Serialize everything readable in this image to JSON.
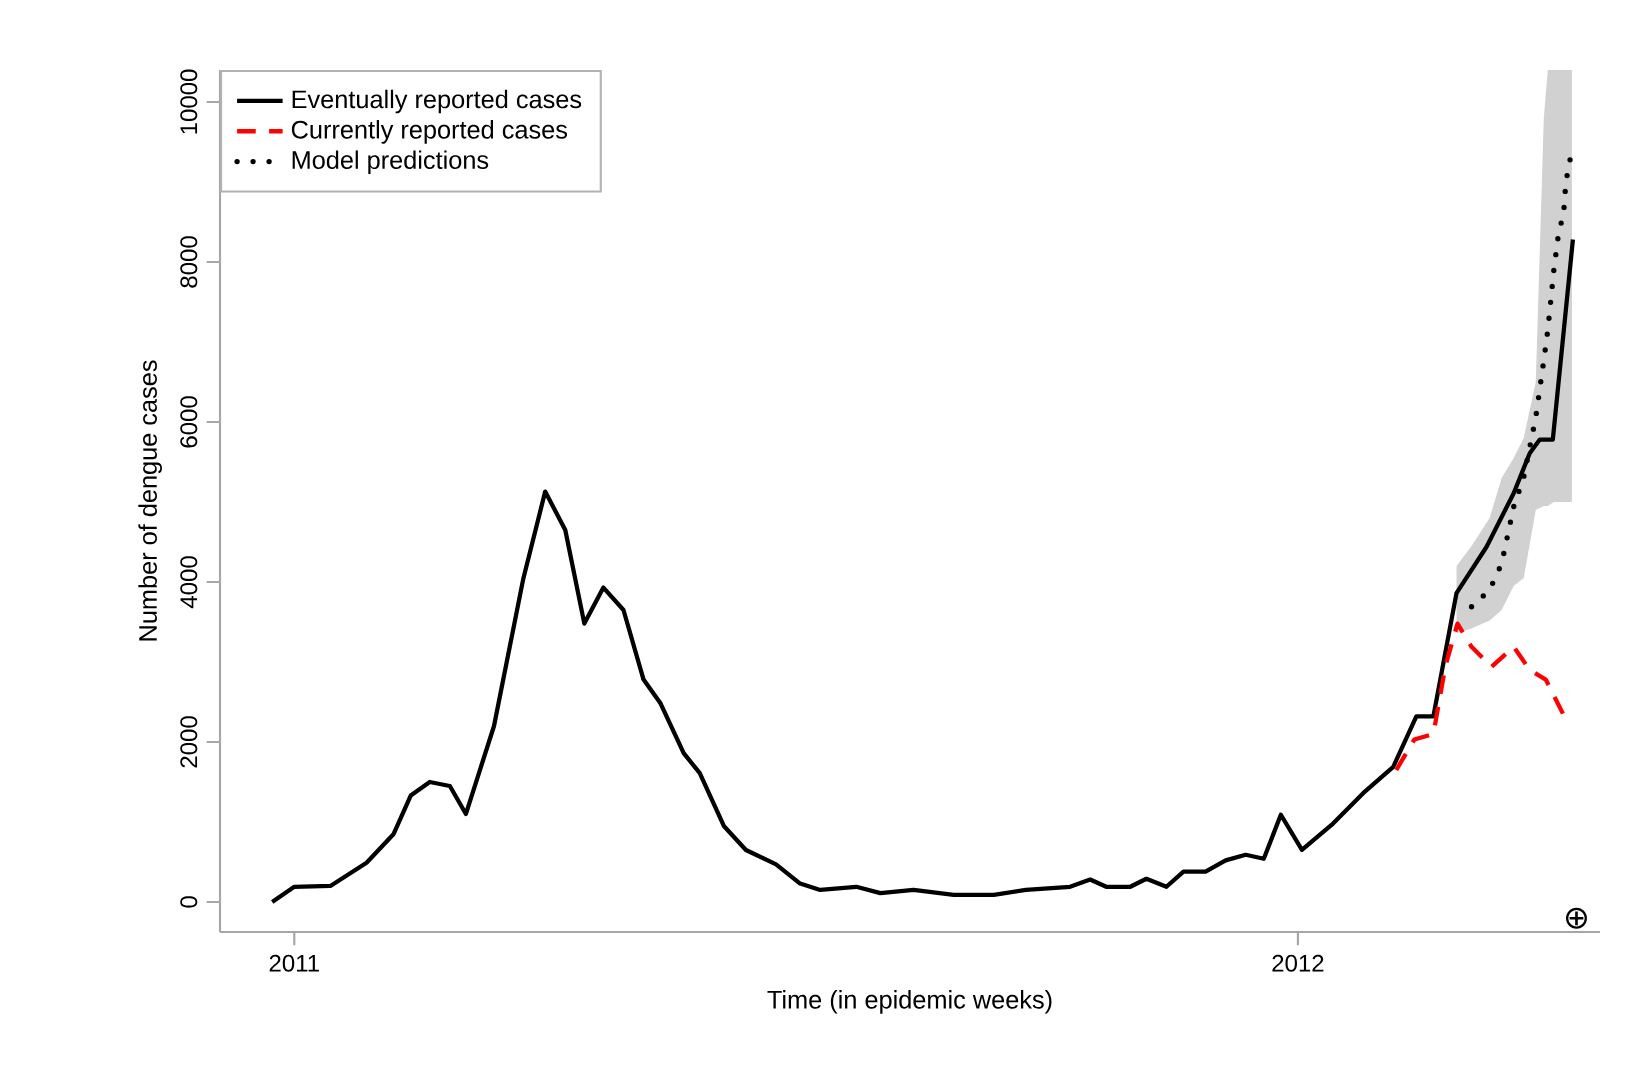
{
  "chart_data": {
    "type": "line",
    "xlabel": "Time (in epidemic weeks)",
    "ylabel": "Number of dengue cases",
    "xlim": [
      2010.926,
      2012.301
    ],
    "ylim": [
      -375,
      10400
    ],
    "xticks": [
      2011,
      2012
    ],
    "yticks": [
      0,
      2000,
      4000,
      6000,
      8000,
      10000
    ],
    "grid": false,
    "legend": "top left",
    "annotations": [
      "⊕"
    ],
    "series": [
      {
        "name": "Eventually reported cases",
        "color": "#000000",
        "line_style": "solid",
        "x": [
          2010.978,
          2011.0,
          2011.036,
          2011.072,
          2011.099,
          2011.116,
          2011.135,
          2011.155,
          2011.171,
          2011.199,
          2011.228,
          2011.25,
          2011.27,
          2011.289,
          2011.308,
          2011.328,
          2011.348,
          2011.365,
          2011.388,
          2011.404,
          2011.428,
          2011.45,
          2011.48,
          2011.504,
          2011.524,
          2011.56,
          2011.584,
          2011.617,
          2011.657,
          2011.697,
          2011.729,
          2011.773,
          2011.793,
          2011.809,
          2011.833,
          2011.849,
          2011.869,
          2011.886,
          2011.908,
          2011.928,
          2011.948,
          2011.966,
          2011.983,
          2012.004,
          2012.035,
          2012.065,
          2012.095,
          2012.118,
          2012.135,
          2012.158,
          2012.188,
          2012.215,
          2012.231,
          2012.241,
          2012.254,
          2012.274
        ],
        "values": [
          0,
          190,
          200,
          490,
          850,
          1330,
          1500,
          1450,
          1100,
          2200,
          4030,
          5130,
          4650,
          3480,
          3930,
          3650,
          2780,
          2480,
          1860,
          1610,
          950,
          650,
          470,
          230,
          150,
          190,
          110,
          150,
          90,
          90,
          150,
          190,
          280,
          190,
          190,
          290,
          190,
          380,
          380,
          520,
          590,
          540,
          1090,
          650,
          980,
          1360,
          1690,
          2320,
          2320,
          3860,
          4440,
          5110,
          5610,
          5780,
          5780,
          8280
        ]
      },
      {
        "name": "Currently reported cases",
        "color": "#ff0000",
        "line_style": "dashed",
        "x": [
          2012.098,
          2012.116,
          2012.135,
          2012.147,
          2012.159,
          2012.173,
          2012.193,
          2012.215,
          2012.231,
          2012.247,
          2012.267
        ],
        "values": [
          1650,
          2030,
          2100,
          2950,
          3480,
          3190,
          2940,
          3190,
          2900,
          2780,
          2280
        ]
      },
      {
        "name": "Model predictions",
        "color": "#000000",
        "line_style": "dotted",
        "x": [
          2012.158,
          2012.173,
          2012.191,
          2012.203,
          2012.215,
          2012.225,
          2012.237,
          2012.245,
          2012.249,
          2012.255,
          2012.259,
          2012.265,
          2012.267,
          2012.273
        ],
        "values": [
          null,
          3690,
          3900,
          4230,
          4940,
          5310,
          6060,
          6770,
          7150,
          7900,
          8290,
          8650,
          9000,
          9400
        ],
        "lower": [
          3360,
          3420,
          3520,
          3650,
          3950,
          4050,
          4900,
          4950,
          4950,
          5000,
          5000,
          5000,
          5000,
          5000
        ],
        "upper": [
          4200,
          4450,
          4800,
          5300,
          5550,
          5800,
          6500,
          9800,
          10400,
          10400,
          10400,
          10400,
          10400,
          10400
        ]
      }
    ]
  }
}
